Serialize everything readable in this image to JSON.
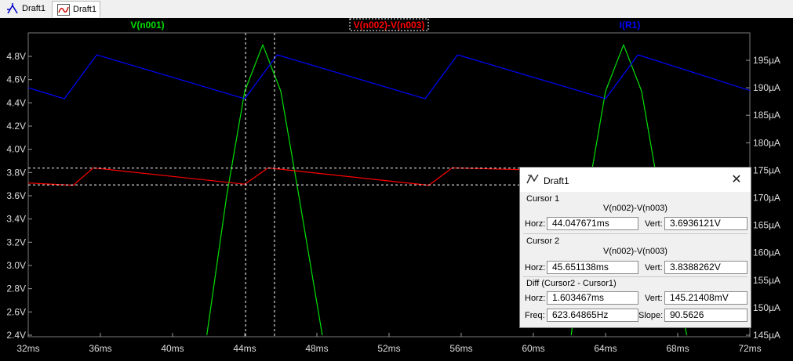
{
  "tabs": [
    {
      "label": "Draft1",
      "icon": "schematic-icon"
    },
    {
      "label": "Draft1",
      "icon": "waveform-icon"
    }
  ],
  "traces": [
    {
      "name": "V(n001)",
      "color": "#00e000"
    },
    {
      "name": "V(n002)-V(n003)",
      "color": "#ff0000"
    },
    {
      "name": "I(R1)",
      "color": "#0000ff"
    }
  ],
  "axes": {
    "left_ticks": [
      "4.8V",
      "4.6V",
      "4.4V",
      "4.2V",
      "4.0V",
      "3.8V",
      "3.6V",
      "3.4V",
      "3.2V",
      "3.0V",
      "2.8V",
      "2.6V",
      "2.4V"
    ],
    "right_ticks": [
      "195µA",
      "190µA",
      "185µA",
      "180µA",
      "175µA",
      "170µA",
      "165µA",
      "160µA",
      "155µA",
      "150µA",
      "145µA"
    ],
    "x_ticks": [
      "32ms",
      "36ms",
      "40ms",
      "44ms",
      "48ms",
      "52ms",
      "56ms",
      "60ms",
      "64ms",
      "68ms",
      "72ms"
    ]
  },
  "chart_data": {
    "type": "line",
    "x_unit": "ms",
    "xlim": [
      32,
      72
    ],
    "ylim_left": [
      2.4,
      4.9
    ],
    "ylim_right": [
      145,
      200
    ],
    "grid": false,
    "series": [
      {
        "name": "V(n001)",
        "axis": "left",
        "x": [
          41.9,
          43,
          44,
          45,
          46,
          47,
          48.3,
          62.1,
          63,
          64,
          65,
          66,
          67,
          68.5
        ],
        "y": [
          2.4,
          3.6,
          4.5,
          4.9,
          4.5,
          3.6,
          2.4,
          2.4,
          3.6,
          4.5,
          4.9,
          4.5,
          3.6,
          2.4
        ]
      },
      {
        "name": "V(n002)-V(n003)",
        "axis": "left",
        "x": [
          32,
          34.5,
          35.6,
          44,
          45.3,
          54.2,
          55.5,
          60.5
        ],
        "y": [
          3.71,
          3.69,
          3.84,
          3.7,
          3.84,
          3.69,
          3.84,
          3.82
        ]
      },
      {
        "name": "I(R1)",
        "axis": "right",
        "x": [
          32,
          34,
          35.8,
          44,
          45.8,
          54,
          55.8,
          64,
          65.8,
          72
        ],
        "y": [
          190,
          188,
          196,
          188,
          196,
          188,
          196,
          188,
          196,
          189.5
        ]
      }
    ],
    "cursors": [
      {
        "x": 44.047671,
        "y": 3.6936121
      },
      {
        "x": 45.651138,
        "y": 3.8388262
      }
    ]
  },
  "dialog": {
    "title": "Draft1",
    "close": "✕",
    "cursor1": {
      "heading": "Cursor 1",
      "trace": "V(n002)-V(n003)",
      "horz_label": "Horz:",
      "horz": "44.047671ms",
      "vert_label": "Vert:",
      "vert": "3.6936121V"
    },
    "cursor2": {
      "heading": "Cursor 2",
      "trace": "V(n002)-V(n003)",
      "horz_label": "Horz:",
      "horz": "45.651138ms",
      "vert_label": "Vert:",
      "vert": "3.8388262V"
    },
    "diff": {
      "heading": "Diff (Cursor2 - Cursor1)",
      "horz_label": "Horz:",
      "horz": "1.603467ms",
      "vert_label": "Vert:",
      "vert": "145.21408mV",
      "freq_label": "Freq:",
      "freq": "623.64865Hz",
      "slope_label": "Slope:",
      "slope": "90.5626"
    }
  }
}
